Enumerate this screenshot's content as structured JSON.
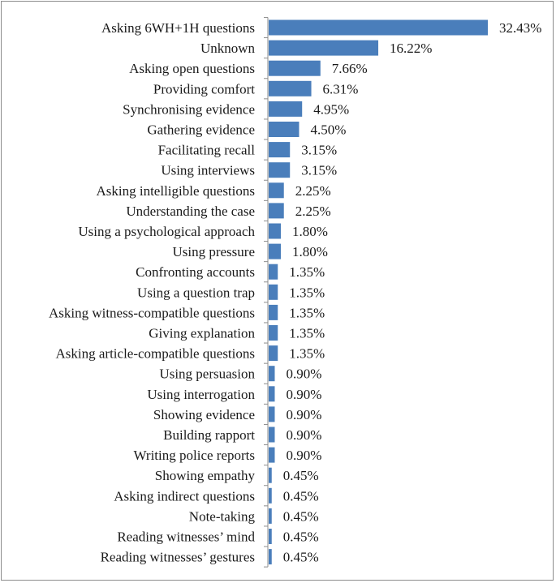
{
  "chart_data": {
    "type": "bar",
    "orientation": "horizontal",
    "title": "",
    "xlabel": "",
    "ylabel": "",
    "grid": false,
    "legend": "none",
    "bar_color": "#4a7ebb",
    "xlim": [
      0,
      32.43
    ],
    "categories": [
      "Asking 6WH+1H questions",
      "Unknown",
      "Asking open questions",
      "Providing comfort",
      "Synchronising evidence",
      "Gathering evidence",
      "Facilitating recall",
      "Using interviews",
      "Asking intelligible questions",
      "Understanding the case",
      "Using a psychological approach",
      "Using pressure",
      "Confronting accounts",
      "Using a question trap",
      "Asking witness-compatible questions",
      "Giving explanation",
      "Asking article-compatible questions",
      "Using persuasion",
      "Using interrogation",
      "Showing evidence",
      "Building rapport",
      "Writing police reports",
      "Showing empathy",
      "Asking indirect questions",
      "Note-taking",
      "Reading witnesses’ mind",
      "Reading witnesses’ gestures"
    ],
    "values": [
      32.43,
      16.22,
      7.66,
      6.31,
      4.95,
      4.5,
      3.15,
      3.15,
      2.25,
      2.25,
      1.8,
      1.8,
      1.35,
      1.35,
      1.35,
      1.35,
      1.35,
      0.9,
      0.9,
      0.9,
      0.9,
      0.9,
      0.45,
      0.45,
      0.45,
      0.45,
      0.45
    ],
    "value_labels": [
      "32.43%",
      "16.22%",
      "7.66%",
      "6.31%",
      "4.95%",
      "4.50%",
      "3.15%",
      "3.15%",
      "2.25%",
      "2.25%",
      "1.80%",
      "1.80%",
      "1.35%",
      "1.35%",
      "1.35%",
      "1.35%",
      "1.35%",
      "0.90%",
      "0.90%",
      "0.90%",
      "0.90%",
      "0.90%",
      "0.45%",
      "0.45%",
      "0.45%",
      "0.45%",
      "0.45%"
    ]
  }
}
